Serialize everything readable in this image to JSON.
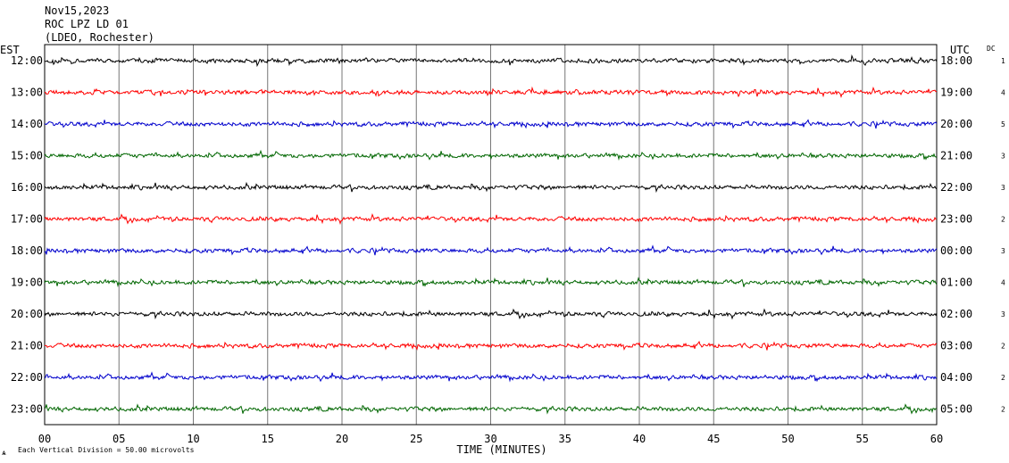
{
  "header": {
    "date": "Nov15,2023",
    "station": "ROC LPZ LD 01",
    "network": "(LDEO, Rochester)"
  },
  "left_axis_title": "EST",
  "right_axis_title": "UTC",
  "dc_title": "DC",
  "footer": {
    "scale_note": "Each Vertical Division =   50.00 microvolts"
  },
  "colors": {
    "trace_cycle": [
      "#000000",
      "#ff0000",
      "#0000cc",
      "#006600"
    ],
    "grid": "#777777",
    "frame": "#000000"
  },
  "chart_data": {
    "type": "line",
    "description_kind": "helicorder",
    "xlabel": "TIME (MINUTES)",
    "x_ticks": [
      "00",
      "05",
      "10",
      "15",
      "20",
      "25",
      "30",
      "35",
      "40",
      "45",
      "50",
      "55",
      "60"
    ],
    "xlim": [
      0,
      60
    ],
    "rows": [
      {
        "est": "12:00",
        "utc": "18:00",
        "dc": "1"
      },
      {
        "est": "13:00",
        "utc": "19:00",
        "dc": "4"
      },
      {
        "est": "14:00",
        "utc": "20:00",
        "dc": "5"
      },
      {
        "est": "15:00",
        "utc": "21:00",
        "dc": "3"
      },
      {
        "est": "16:00",
        "utc": "22:00",
        "dc": "3"
      },
      {
        "est": "17:00",
        "utc": "23:00",
        "dc": "2"
      },
      {
        "est": "18:00",
        "utc": "00:00",
        "dc": "3"
      },
      {
        "est": "19:00",
        "utc": "01:00",
        "dc": "4"
      },
      {
        "est": "20:00",
        "utc": "02:00",
        "dc": "3"
      },
      {
        "est": "21:00",
        "utc": "03:00",
        "dc": "2"
      },
      {
        "est": "22:00",
        "utc": "04:00",
        "dc": "2"
      },
      {
        "est": "23:00",
        "utc": "05:00",
        "dc": "2"
      }
    ]
  }
}
